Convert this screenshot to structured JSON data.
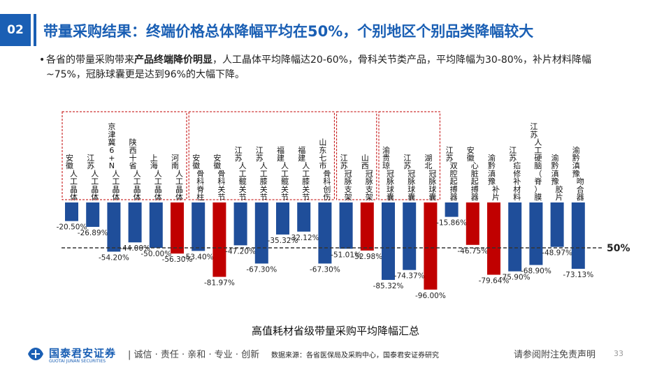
{
  "header": {
    "section_number": "02",
    "title": "带量采购结果：终端价格总体降幅平均在50%，个别地区个别品类降幅较大"
  },
  "bullet": {
    "text_before": "各省的带量采购带来",
    "text_bold": "产品终端降价明显",
    "text_after": "，人工晶体平均降幅达20-60%，骨科关节类产品，平均降幅为30-80%，补片材料降幅~75%，冠脉球囊更是达到96%的大幅下降。"
  },
  "chart_data": {
    "type": "bar",
    "title": "高值耗材省级带量采购平均降幅汇总",
    "reference_line": {
      "value": -50,
      "label": "50%"
    },
    "ylim": [
      -100,
      0
    ],
    "categories": [
      {
        "label": "安徽 人工晶体",
        "value": -20.5,
        "color": "#1f4e9a"
      },
      {
        "label": "江苏 人工晶体",
        "value": -26.89,
        "color": "#1f4e9a"
      },
      {
        "label": "京津冀6+N 人工晶体",
        "value": -54.2,
        "color": "#1f4e9a"
      },
      {
        "label": "陕西十省 人工晶体",
        "value": -44.0,
        "color": "#1f4e9a"
      },
      {
        "label": "上海 人工晶体",
        "value": -50.0,
        "color": "#1f4e9a"
      },
      {
        "label": "河南 人工晶体",
        "value": -56.3,
        "color": "#c00000"
      },
      {
        "label": "安徽 骨科脊柱",
        "value": -53.4,
        "color": "#1f4e9a"
      },
      {
        "label": "安徽 骨科关节",
        "value": -81.97,
        "color": "#c00000"
      },
      {
        "label": "江苏 人工髋关节",
        "value": -47.2,
        "color": "#1f4e9a"
      },
      {
        "label": "江苏 人工膝关节",
        "value": -67.3,
        "color": "#1f4e9a"
      },
      {
        "label": "福建 人工髋关节",
        "value": -35.32,
        "color": "#1f4e9a"
      },
      {
        "label": "福建 人工膝关节",
        "value": -32.12,
        "color": "#1f4e9a"
      },
      {
        "label": "山东七市 骨科创伤",
        "value": -67.3,
        "color": "#1f4e9a"
      },
      {
        "label": "江苏 冠脉支架",
        "value": -51.01,
        "color": "#1f4e9a"
      },
      {
        "label": "山西 冠脉支架",
        "value": -52.98,
        "color": "#c00000"
      },
      {
        "label": "渝贵琼 冠脉球囊",
        "value": -85.32,
        "color": "#1f4e9a"
      },
      {
        "label": "江苏 冠脉球囊",
        "value": -74.37,
        "color": "#1f4e9a"
      },
      {
        "label": "湖北 冠脉球囊",
        "value": -96.0,
        "color": "#c00000"
      },
      {
        "label": "江苏 双腔起搏器",
        "value": -15.86,
        "color": "#1f4e9a"
      },
      {
        "label": "安徽 心脏起搏器",
        "value": -46.75,
        "color": "#c00000"
      },
      {
        "label": "渝黔滇豫 补片",
        "value": -79.64,
        "color": "#c00000"
      },
      {
        "label": "江苏 疝修补材料",
        "value": -75.9,
        "color": "#1f4e9a"
      },
      {
        "label": "江苏 人工硬脑（脊）膜",
        "value": -68.9,
        "color": "#1f4e9a"
      },
      {
        "label": "渝黔滇豫 胶片",
        "value": -48.97,
        "color": "#1f4e9a"
      },
      {
        "label": "渝黔滇豫 吻合器",
        "value": -73.13,
        "color": "#1f4e9a"
      }
    ],
    "category_labels_top": [
      [
        "安",
        "徽"
      ],
      [
        "江",
        "苏"
      ],
      [
        "京",
        "津",
        "冀",
        "6",
        "+",
        "N"
      ],
      [
        "陕",
        "西",
        "十",
        "省"
      ],
      [
        "上",
        "海"
      ],
      [
        "河",
        "南"
      ],
      [
        "安",
        "徽"
      ],
      [
        "安",
        "徽"
      ],
      [
        "江",
        "苏"
      ],
      [
        "江",
        "苏"
      ],
      [
        "福",
        "建"
      ],
      [
        "福",
        "建"
      ],
      [
        "山",
        "东",
        "七",
        "市"
      ],
      [
        "江",
        "苏"
      ],
      [
        "山",
        "西"
      ],
      [
        "渝",
        "贵",
        "琼"
      ],
      [
        "江",
        "苏"
      ],
      [
        "湖",
        "北"
      ],
      [
        "江",
        "苏"
      ],
      [
        "安",
        "徽"
      ],
      [
        "渝",
        "黔",
        "滇",
        "豫"
      ],
      [
        "江",
        "苏"
      ],
      [
        "江",
        "苏"
      ],
      [
        "渝",
        "黔",
        "滇",
        "豫"
      ],
      [
        "渝",
        "黔",
        "滇",
        "豫"
      ]
    ],
    "category_labels_bottom": [
      [
        "人",
        "工",
        "晶",
        "体"
      ],
      [
        "人",
        "工",
        "晶",
        "体"
      ],
      [
        "人",
        "工",
        "晶",
        "体"
      ],
      [
        "人",
        "工",
        "晶",
        "体"
      ],
      [
        "人",
        "工",
        "晶",
        "体"
      ],
      [
        "人",
        "工",
        "晶",
        "体"
      ],
      [
        "骨",
        "科",
        "脊",
        "柱"
      ],
      [
        "骨",
        "科",
        "关",
        "节"
      ],
      [
        "人",
        "工",
        "髋",
        "关",
        "节"
      ],
      [
        "人",
        "工",
        "膝",
        "关",
        "节"
      ],
      [
        "人",
        "工",
        "髋",
        "关",
        "节"
      ],
      [
        "人",
        "工",
        "膝",
        "关",
        "节"
      ],
      [
        "骨",
        "科",
        "创",
        "伤"
      ],
      [
        "冠",
        "脉",
        "支",
        "架"
      ],
      [
        "冠",
        "脉",
        "支",
        "架"
      ],
      [
        "冠",
        "脉",
        "球",
        "囊"
      ],
      [
        "冠",
        "脉",
        "球",
        "囊"
      ],
      [
        "冠",
        "脉",
        "球",
        "囊"
      ],
      [
        "双",
        "腔",
        "起",
        "搏",
        "器"
      ],
      [
        "心",
        "脏",
        "起",
        "搏",
        "器"
      ],
      [
        "补",
        "片"
      ],
      [
        "疝",
        "修",
        "补",
        "材",
        "料"
      ],
      [
        "人",
        "工",
        "硬",
        "脑",
        "（",
        "脊",
        "）",
        "膜"
      ],
      [
        "胶",
        "片"
      ],
      [
        "吻",
        "合",
        "器"
      ]
    ],
    "value_labels": [
      "-20.50%",
      "-26.89%",
      "-54.20%",
      "-44.00%",
      "-50.00%",
      "-56.30%",
      "-53.40%",
      "-81.97%",
      "-47.20%",
      "-67.30%",
      "-35.32%",
      "-32.12%",
      "-67.30%",
      "-51.01%",
      "-52.98%",
      "-85.32%",
      "-74.37%",
      "-96.00%",
      "-15.86%",
      "-46.75%",
      "-79.64%",
      "-75.90%",
      "-68.90%",
      "-48.97%",
      "-73.13%"
    ],
    "groups": [
      {
        "name": "人工晶体",
        "from": 0,
        "to": 5
      },
      {
        "name": "骨科",
        "from": 6,
        "to": 12
      },
      {
        "name": "冠脉支架",
        "from": 13,
        "to": 14
      },
      {
        "name": "冠脉球囊",
        "from": 15,
        "to": 17
      }
    ]
  },
  "footer": {
    "logo_cn": "国泰君安证券",
    "logo_en": "GUOTAI JUNAN SECURITIES",
    "slogan": "| 诚信 · 责任 · 亲和 · 专业 · 创新",
    "source": "数据来源：各省医保局及采购中心，国泰君安证券研究",
    "disclaimer": "请参阅附注免责声明",
    "page": "33"
  },
  "colors": {
    "brand_blue": "#1a5fb4",
    "bar_blue": "#1f4e9a",
    "bar_red": "#c00000",
    "group_border": "#c00000"
  }
}
